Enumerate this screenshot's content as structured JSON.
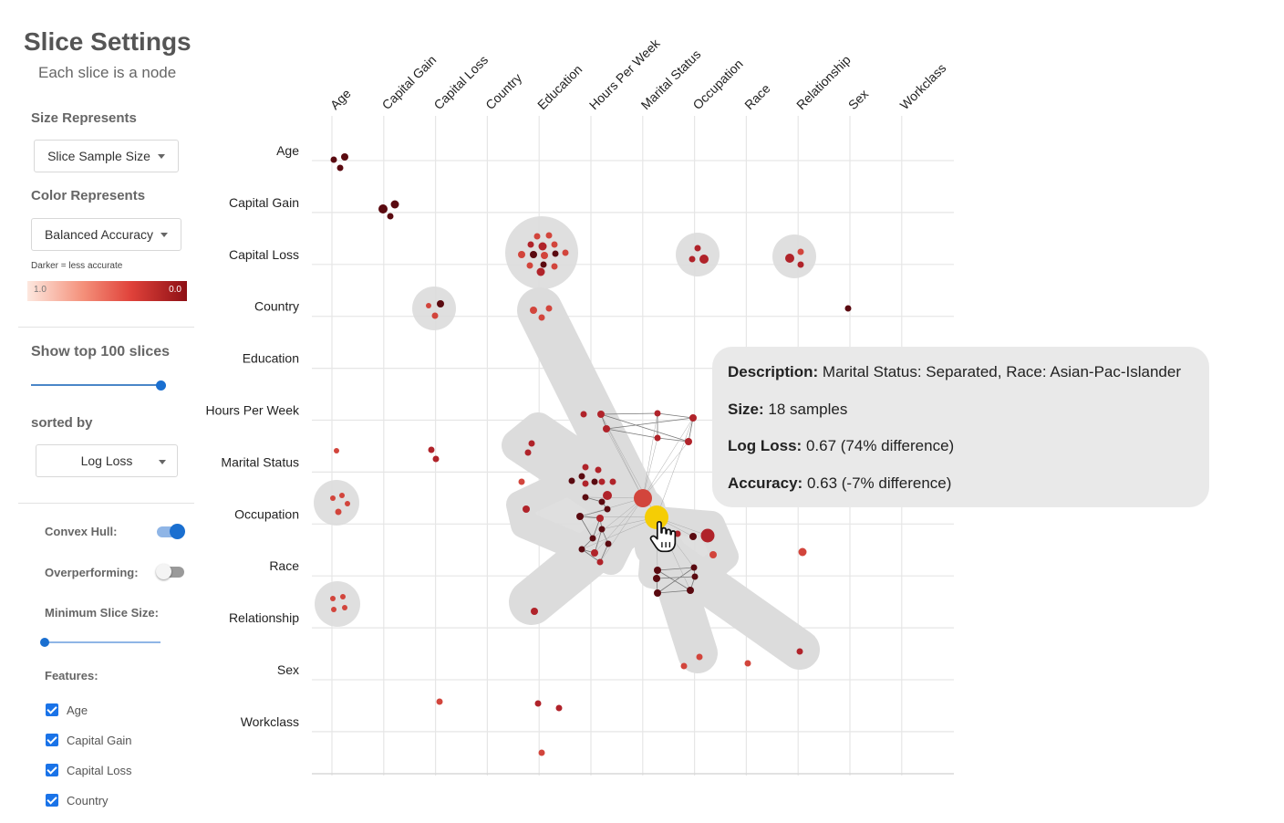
{
  "sidebar": {
    "title": "Slice Settings",
    "subtitle": "Each slice is a node",
    "size_label": "Size Represents",
    "size_value": "Slice Sample Size",
    "color_label": "Color Represents",
    "color_value": "Balanced Accuracy",
    "legend_note": "Darker = less accurate",
    "legend_min": "1.0",
    "legend_max": "0.0",
    "show_top": "Show top 100 slices",
    "top_fraction": 1.0,
    "sorted_by_label": "sorted by",
    "sorted_by_value": "Log Loss",
    "convex_hull_label": "Convex Hull:",
    "convex_hull_on": true,
    "overperforming_label": "Overperforming:",
    "overperforming_on": false,
    "min_slice_label": "Minimum Slice Size:",
    "min_slice_fraction": 0.0,
    "features_label": "Features:",
    "features": [
      {
        "label": "Age",
        "checked": true
      },
      {
        "label": "Capital Gain",
        "checked": true
      },
      {
        "label": "Capital Loss",
        "checked": true
      },
      {
        "label": "Country",
        "checked": true
      }
    ]
  },
  "matrix": {
    "columns": [
      "Age",
      "Capital Gain",
      "Capital Loss",
      "Country",
      "Education",
      "Hours Per Week",
      "Marital Status",
      "Occupation",
      "Race",
      "Relationship",
      "Sex",
      "Workclass"
    ],
    "rows": [
      "Age",
      "Capital Gain",
      "Capital Loss",
      "Country",
      "Education",
      "Hours Per Week",
      "Marital Status",
      "Occupation",
      "Race",
      "Relationship",
      "Sex",
      "Workclass"
    ]
  },
  "colors": {
    "dark": "#5a0a10",
    "mid": "#b0232a",
    "light": "#d2453c",
    "hull": "#dcdcdc",
    "highlight": "#f5cd05",
    "accent": "#1a6fd0"
  },
  "tooltip": {
    "desc_label": "Description:",
    "desc_value": "Marital Status: Separated, Race: Asian-Pac-Islander",
    "size_label": "Size:",
    "size_value": "18 samples",
    "logloss_label": "Log Loss:",
    "logloss_value": "0.67 (74% difference)",
    "accuracy_label": "Accuracy:",
    "accuracy_value": "0.63 (-7% difference)"
  }
}
